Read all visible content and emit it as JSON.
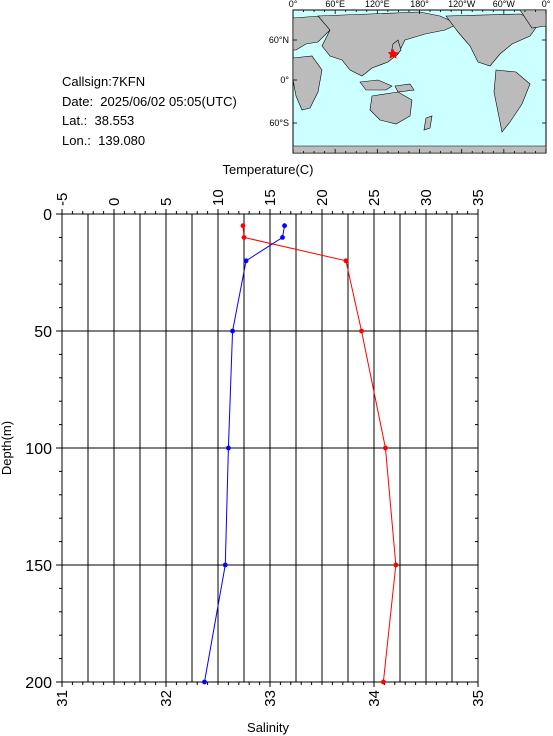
{
  "info": {
    "callsign": "Callsign:7KFN",
    "date": "Date:  2025/06/02 05:05(UTC)",
    "lat": "Lat.:  38.553",
    "lon": "Lon.:  139.080"
  },
  "map": {
    "top_labels": [
      "0°",
      "60°E",
      "120°E",
      "180°",
      "120°W",
      "60°W",
      "0°"
    ],
    "lat_labels": [
      "60°N",
      "0°",
      "60°S"
    ],
    "marker": "star",
    "colors": {
      "ocean": "#ccffff",
      "land": "#bbbbbb",
      "marker": "#ff0000"
    }
  },
  "chart_data": {
    "type": "line",
    "title": "",
    "top_axis": {
      "label": "Temperature(C)",
      "range": [
        -5,
        35
      ],
      "ticks": [
        "-5",
        "0",
        "5",
        "10",
        "15",
        "20",
        "25",
        "30",
        "35"
      ]
    },
    "bottom_axis": {
      "label": "Salinity",
      "range": [
        31,
        35
      ],
      "ticks": [
        "31",
        "32",
        "33",
        "34",
        "35"
      ]
    },
    "left_axis": {
      "label": "Depth(m)",
      "range": [
        0,
        200
      ],
      "inverted": true,
      "ticks": [
        "0",
        "50",
        "100",
        "150",
        "200"
      ]
    },
    "grid": true,
    "series": [
      {
        "quantity": "temperature",
        "axis": "top",
        "color": "#ff0000",
        "depth": [
          5,
          10,
          20,
          50,
          100,
          150,
          200
        ],
        "values": [
          12.4,
          12.5,
          22.3,
          23.8,
          26.1,
          27.1,
          25.9
        ]
      },
      {
        "quantity": "salinity",
        "axis": "bottom",
        "color": "#0000ff",
        "depth": [
          5,
          10,
          20,
          50,
          100,
          150,
          200
        ],
        "values": [
          33.14,
          33.12,
          32.77,
          32.64,
          32.6,
          32.57,
          32.37
        ]
      }
    ]
  }
}
